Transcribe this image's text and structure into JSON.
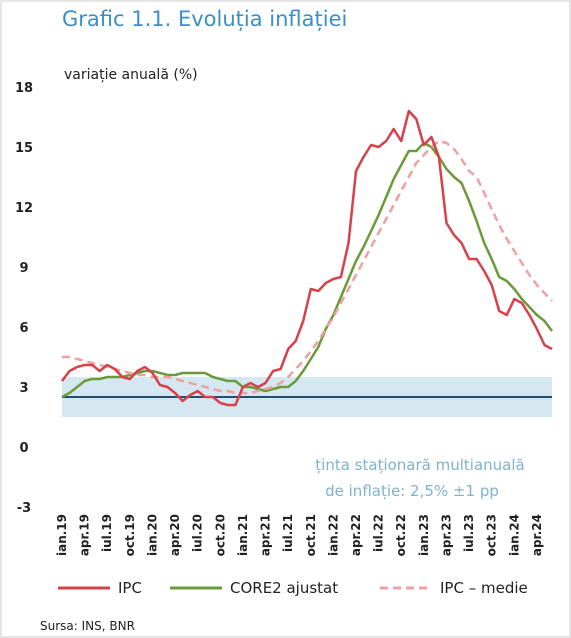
{
  "chart_data": {
    "type": "line",
    "title": "Grafic 1.1. Evoluția inflației",
    "y_label": "variație anuală (%)",
    "annotation": [
      "ținta staționară multianuală",
      "de inflație: 2,5% ±1 pp"
    ],
    "source": "Sursa: INS, BNR",
    "target": 2.5,
    "target_band": [
      1.5,
      3.5
    ],
    "ylim": [
      -3,
      18
    ],
    "yticks": [
      18,
      15,
      12,
      9,
      6,
      3,
      0,
      -3
    ],
    "categories": [
      "ian.19",
      null,
      null,
      "apr.19",
      null,
      null,
      "iul.19",
      null,
      null,
      "oct.19",
      null,
      null,
      "ian.20",
      null,
      null,
      "apr.20",
      null,
      null,
      "iul.20",
      null,
      null,
      "oct.20",
      null,
      null,
      "ian.21",
      null,
      null,
      "apr.21",
      null,
      null,
      "iul.21",
      null,
      null,
      "oct.21",
      null,
      null,
      "ian.22",
      null,
      null,
      "apr.22",
      null,
      null,
      "iul.22",
      null,
      null,
      "oct.22",
      null,
      null,
      "ian.23",
      null,
      null,
      "apr.23",
      null,
      null,
      "iul.23",
      null,
      null,
      "oct.23",
      null,
      null,
      "ian.24",
      null,
      null,
      "apr.24",
      null,
      null
    ],
    "series": [
      {
        "name": "IPC",
        "color": "#d9414a",
        "style": "solid",
        "values": [
          3.3,
          3.8,
          4.0,
          4.1,
          4.1,
          3.8,
          4.1,
          3.9,
          3.5,
          3.4,
          3.8,
          4.0,
          3.7,
          3.1,
          3.0,
          2.7,
          2.3,
          2.6,
          2.8,
          2.5,
          2.5,
          2.2,
          2.1,
          2.1,
          3.0,
          3.2,
          3.0,
          3.2,
          3.8,
          3.9,
          4.9,
          5.3,
          6.3,
          7.9,
          7.8,
          8.2,
          8.4,
          8.5,
          10.2,
          13.8,
          14.5,
          15.1,
          15.0,
          15.3,
          15.9,
          15.3,
          16.8,
          16.4,
          15.1,
          15.5,
          14.5,
          11.2,
          10.6,
          10.2,
          9.4,
          9.4,
          8.8,
          8.1,
          6.8,
          6.6,
          7.4,
          7.2,
          6.6,
          5.9,
          5.1,
          4.9
        ]
      },
      {
        "name": "CORE2 ajustat",
        "color": "#6a9a3a",
        "style": "solid",
        "values": [
          2.5,
          2.7,
          3.0,
          3.3,
          3.4,
          3.4,
          3.5,
          3.5,
          3.5,
          3.6,
          3.7,
          3.8,
          3.8,
          3.7,
          3.6,
          3.6,
          3.7,
          3.7,
          3.7,
          3.7,
          3.5,
          3.4,
          3.3,
          3.3,
          3.0,
          3.0,
          2.9,
          2.8,
          2.9,
          3.0,
          3.0,
          3.3,
          3.8,
          4.4,
          5.0,
          5.9,
          6.6,
          7.5,
          8.4,
          9.3,
          10.0,
          10.8,
          11.6,
          12.5,
          13.4,
          14.1,
          14.8,
          14.8,
          15.2,
          15.0,
          14.5,
          13.9,
          13.5,
          13.2,
          12.3,
          11.3,
          10.2,
          9.4,
          8.5,
          8.3,
          7.9,
          7.4,
          7.0,
          6.6,
          6.3,
          5.8
        ]
      },
      {
        "name": "IPC – medie",
        "color": "#eea1a0",
        "style": "dashed",
        "values": [
          4.5,
          4.5,
          4.4,
          4.3,
          4.2,
          4.1,
          4.0,
          3.9,
          3.8,
          3.7,
          3.6,
          3.6,
          3.5,
          3.5,
          3.5,
          3.4,
          3.3,
          3.2,
          3.1,
          3.0,
          2.9,
          2.8,
          2.8,
          2.7,
          2.7,
          2.7,
          2.8,
          2.9,
          3.0,
          3.2,
          3.5,
          3.9,
          4.3,
          4.8,
          5.3,
          5.9,
          6.5,
          7.2,
          7.9,
          8.6,
          9.3,
          10.0,
          10.7,
          11.4,
          12.1,
          12.8,
          13.5,
          14.2,
          14.6,
          15.0,
          15.3,
          15.2,
          14.9,
          14.4,
          13.8,
          13.5,
          12.7,
          11.9,
          11.1,
          10.4,
          9.8,
          9.2,
          8.6,
          8.1,
          7.7,
          7.3
        ]
      }
    ]
  }
}
